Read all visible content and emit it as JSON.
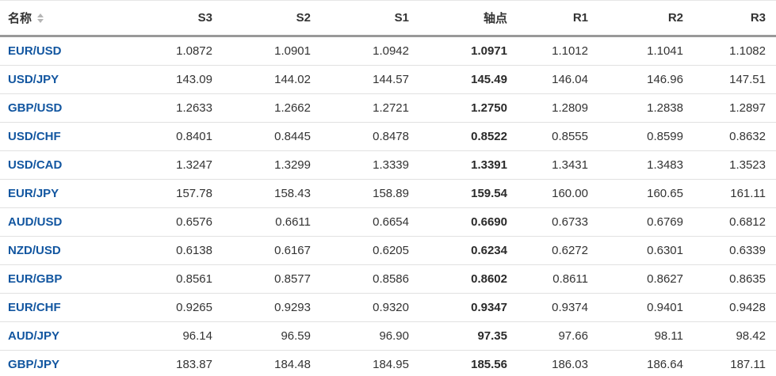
{
  "table": {
    "columns": [
      {
        "key": "name",
        "label": "名称",
        "sortable": true
      },
      {
        "key": "s3",
        "label": "S3",
        "sortable": false
      },
      {
        "key": "s2",
        "label": "S2",
        "sortable": false
      },
      {
        "key": "s1",
        "label": "S1",
        "sortable": false
      },
      {
        "key": "pivot",
        "label": "轴点",
        "sortable": false
      },
      {
        "key": "r1",
        "label": "R1",
        "sortable": false
      },
      {
        "key": "r2",
        "label": "R2",
        "sortable": false
      },
      {
        "key": "r3",
        "label": "R3",
        "sortable": false
      }
    ],
    "rows": [
      {
        "name": "EUR/USD",
        "s3": "1.0872",
        "s2": "1.0901",
        "s1": "1.0942",
        "pivot": "1.0971",
        "r1": "1.1012",
        "r2": "1.1041",
        "r3": "1.1082"
      },
      {
        "name": "USD/JPY",
        "s3": "143.09",
        "s2": "144.02",
        "s1": "144.57",
        "pivot": "145.49",
        "r1": "146.04",
        "r2": "146.96",
        "r3": "147.51"
      },
      {
        "name": "GBP/USD",
        "s3": "1.2633",
        "s2": "1.2662",
        "s1": "1.2721",
        "pivot": "1.2750",
        "r1": "1.2809",
        "r2": "1.2838",
        "r3": "1.2897"
      },
      {
        "name": "USD/CHF",
        "s3": "0.8401",
        "s2": "0.8445",
        "s1": "0.8478",
        "pivot": "0.8522",
        "r1": "0.8555",
        "r2": "0.8599",
        "r3": "0.8632"
      },
      {
        "name": "USD/CAD",
        "s3": "1.3247",
        "s2": "1.3299",
        "s1": "1.3339",
        "pivot": "1.3391",
        "r1": "1.3431",
        "r2": "1.3483",
        "r3": "1.3523"
      },
      {
        "name": "EUR/JPY",
        "s3": "157.78",
        "s2": "158.43",
        "s1": "158.89",
        "pivot": "159.54",
        "r1": "160.00",
        "r2": "160.65",
        "r3": "161.11"
      },
      {
        "name": "AUD/USD",
        "s3": "0.6576",
        "s2": "0.6611",
        "s1": "0.6654",
        "pivot": "0.6690",
        "r1": "0.6733",
        "r2": "0.6769",
        "r3": "0.6812"
      },
      {
        "name": "NZD/USD",
        "s3": "0.6138",
        "s2": "0.6167",
        "s1": "0.6205",
        "pivot": "0.6234",
        "r1": "0.6272",
        "r2": "0.6301",
        "r3": "0.6339"
      },
      {
        "name": "EUR/GBP",
        "s3": "0.8561",
        "s2": "0.8577",
        "s1": "0.8586",
        "pivot": "0.8602",
        "r1": "0.8611",
        "r2": "0.8627",
        "r3": "0.8635"
      },
      {
        "name": "EUR/CHF",
        "s3": "0.9265",
        "s2": "0.9293",
        "s1": "0.9320",
        "pivot": "0.9347",
        "r1": "0.9374",
        "r2": "0.9401",
        "r3": "0.9428"
      },
      {
        "name": "AUD/JPY",
        "s3": "96.14",
        "s2": "96.59",
        "s1": "96.90",
        "pivot": "97.35",
        "r1": "97.66",
        "r2": "98.11",
        "r3": "98.42"
      },
      {
        "name": "GBP/JPY",
        "s3": "183.87",
        "s2": "184.48",
        "s1": "184.95",
        "pivot": "185.56",
        "r1": "186.03",
        "r2": "186.64",
        "r3": "187.11"
      }
    ]
  },
  "icons": {
    "name_column_sort": "sort-arrows-icon"
  },
  "colors": {
    "pair_link_blue": "#1256a0",
    "header_text": "#333333",
    "cell_text": "#333333",
    "header_border": "#999999",
    "row_divider": "#e1e1e1",
    "sort_icon_gray": "#b5b5b5"
  }
}
